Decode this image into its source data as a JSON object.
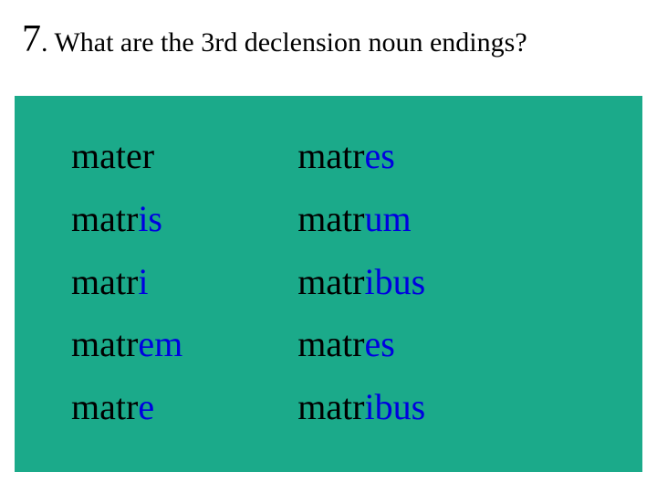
{
  "heading": {
    "number": "7",
    "dot": ". ",
    "text": "What are the 3rd declension noun endings?",
    "number_fontsize": 42,
    "text_fontsize": 30,
    "color": "#000000"
  },
  "panel": {
    "background_color": "#1baa8a",
    "text_color": "#000000",
    "ending_color": "#0000e0",
    "word_fontsize": 40,
    "line_height": 1.72,
    "columns": [
      {
        "words": [
          {
            "stem": "mater",
            "ending": ""
          },
          {
            "stem": "matr",
            "ending": "is"
          },
          {
            "stem": "matr",
            "ending": "i"
          },
          {
            "stem": "matr",
            "ending": "em"
          },
          {
            "stem": "matr",
            "ending": "e"
          }
        ]
      },
      {
        "words": [
          {
            "stem": "matr",
            "ending": "es"
          },
          {
            "stem": "matr",
            "ending": "um"
          },
          {
            "stem": "matr",
            "ending": "ibus"
          },
          {
            "stem": "matr",
            "ending": "es"
          },
          {
            "stem": "matr",
            "ending": "ibus"
          }
        ]
      }
    ]
  }
}
